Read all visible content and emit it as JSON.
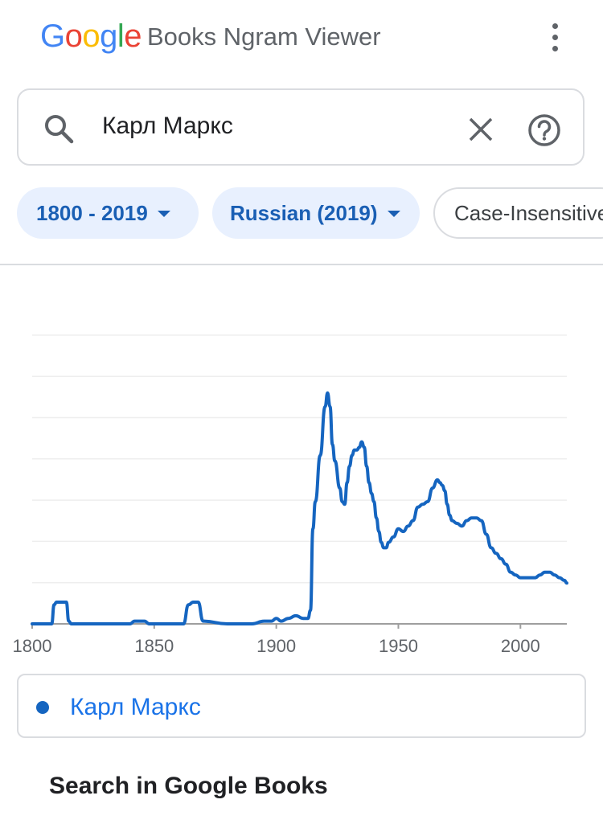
{
  "header": {
    "logo_letters": [
      "G",
      "o",
      "o",
      "g",
      "l",
      "e"
    ],
    "product_name": "Books Ngram Viewer",
    "menu_icon": "more-vert-icon"
  },
  "search": {
    "query": "Карл Маркс",
    "search_icon": "search-icon",
    "clear_icon": "close-icon",
    "help_icon": "help-circle-icon"
  },
  "filters": {
    "year_range": "1800 - 2019",
    "corpus": "Russian (2019)",
    "case": "Case-Insensitive"
  },
  "chart_data": {
    "type": "line",
    "x_ticks": [
      "1800",
      "1850",
      "1900",
      "1950",
      "2000"
    ],
    "xlim": [
      1800,
      2019
    ],
    "grid": true,
    "series": [
      {
        "name": "Карл Маркс",
        "color": "#1565c0",
        "x": [
          1800,
          1808,
          1809,
          1810,
          1814,
          1815,
          1816,
          1840,
          1842,
          1846,
          1848,
          1862,
          1864,
          1866,
          1868,
          1870,
          1880,
          1890,
          1895,
          1898,
          1900,
          1902,
          1905,
          1908,
          1911,
          1913,
          1914,
          1915,
          1916,
          1918,
          1920,
          1921,
          1922,
          1923,
          1924,
          1926,
          1927,
          1928,
          1929,
          1930,
          1931,
          1932,
          1933,
          1934,
          1935,
          1936,
          1937,
          1938,
          1939,
          1940,
          1941,
          1942,
          1943,
          1944,
          1945,
          1946,
          1948,
          1950,
          1952,
          1954,
          1956,
          1958,
          1960,
          1962,
          1964,
          1966,
          1967,
          1968,
          1969,
          1970,
          1971,
          1972,
          1974,
          1976,
          1978,
          1980,
          1982,
          1984,
          1986,
          1988,
          1990,
          1992,
          1994,
          1996,
          1998,
          2000,
          2002,
          2004,
          2006,
          2008,
          2010,
          2012,
          2014,
          2016,
          2018,
          2019
        ],
        "values": [
          0,
          0,
          0.07,
          0.08,
          0.08,
          0.01,
          0,
          0,
          0.01,
          0.01,
          0,
          0,
          0.07,
          0.08,
          0.08,
          0.01,
          0,
          0,
          0.01,
          0.01,
          0.02,
          0.01,
          0.02,
          0.03,
          0.02,
          0.02,
          0.05,
          0.35,
          0.45,
          0.62,
          0.8,
          0.85,
          0.8,
          0.66,
          0.6,
          0.5,
          0.45,
          0.44,
          0.52,
          0.58,
          0.62,
          0.64,
          0.64,
          0.65,
          0.67,
          0.65,
          0.58,
          0.52,
          0.48,
          0.45,
          0.39,
          0.34,
          0.3,
          0.28,
          0.28,
          0.3,
          0.32,
          0.35,
          0.34,
          0.36,
          0.38,
          0.43,
          0.44,
          0.45,
          0.5,
          0.53,
          0.52,
          0.51,
          0.49,
          0.44,
          0.4,
          0.38,
          0.37,
          0.36,
          0.38,
          0.39,
          0.39,
          0.38,
          0.33,
          0.28,
          0.26,
          0.24,
          0.22,
          0.19,
          0.18,
          0.17,
          0.17,
          0.17,
          0.17,
          0.18,
          0.19,
          0.19,
          0.18,
          0.17,
          0.16,
          0.15
        ]
      }
    ]
  },
  "legend": {
    "items": [
      {
        "label": "Карл Маркс",
        "color": "#1565c0"
      }
    ]
  },
  "books_section": {
    "heading": "Search in Google Books"
  }
}
